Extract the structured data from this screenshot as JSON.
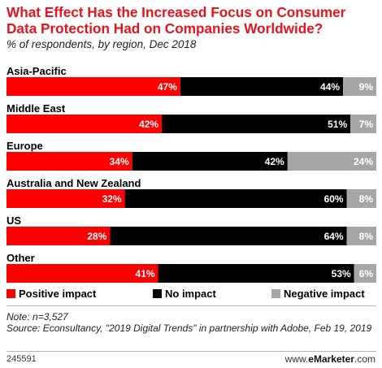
{
  "title": "What Effect Has the Increased Focus on Consumer Data Protection Had on Companies Worldwide?",
  "subtitle": "% of respondents, by region, Dec 2018",
  "colors": {
    "positive": "#ff0000",
    "none": "#000000",
    "negative": "#a6a6a6",
    "title": "#e5141f"
  },
  "chart_data": {
    "type": "bar",
    "orientation": "horizontal",
    "stacked": true,
    "categories": [
      "Asia-Pacific",
      "Middle East",
      "Europe",
      "Australia and New Zealand",
      "US",
      "Other"
    ],
    "series": [
      {
        "name": "Positive impact",
        "values": [
          47,
          42,
          34,
          32,
          28,
          41
        ]
      },
      {
        "name": "No impact",
        "values": [
          44,
          51,
          42,
          60,
          64,
          53
        ]
      },
      {
        "name": "Negative impact",
        "values": [
          9,
          7,
          24,
          8,
          8,
          6
        ]
      }
    ],
    "value_suffix": "%",
    "legend_position": "bottom"
  },
  "footnote": {
    "note": "Note: n=3,527",
    "source": "Source: Econsultancy, \"2019 Digital Trends\" in partnership with Adobe, Feb 19, 2019"
  },
  "chart_id": "245591",
  "brand": {
    "prefix": "www.",
    "name": "eMarketer",
    "suffix": ".com"
  }
}
